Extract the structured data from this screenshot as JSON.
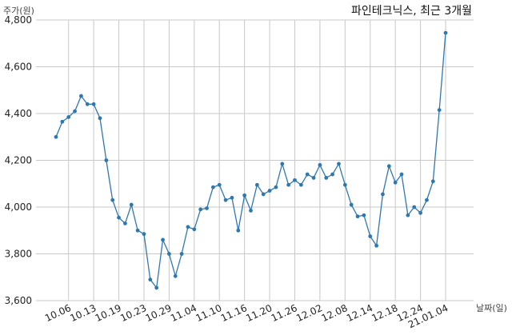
{
  "chart_data": {
    "type": "line",
    "title": "파인테크닉스, 최근 3개월",
    "xlabel": "날짜(일)",
    "ylabel": "주가(원)",
    "ylim": [
      3600,
      4800
    ],
    "y_ticks": [
      3600,
      3800,
      4000,
      4200,
      4400,
      4600,
      4800
    ],
    "y_tick_labels": [
      "3,600",
      "3,800",
      "4,000",
      "4,200",
      "4,400",
      "4,600",
      "4,800"
    ],
    "x_tick_labels": [
      "10.06",
      "10.13",
      "10.19",
      "10.23",
      "10.29",
      "11.04",
      "11.10",
      "11.16",
      "11.20",
      "11.26",
      "12.02",
      "12.08",
      "12.14",
      "12.18",
      "12.24",
      "21.01.04"
    ],
    "x_tick_index": [
      2,
      6,
      10,
      14,
      18,
      22,
      26,
      30,
      34,
      38,
      42,
      46,
      50,
      54,
      58,
      62
    ],
    "grid": true,
    "color": "#2e78b0",
    "values": [
      4300,
      4365,
      4385,
      4410,
      4475,
      4440,
      4440,
      4380,
      4200,
      4030,
      3955,
      3930,
      4010,
      3900,
      3885,
      3690,
      3655,
      3860,
      3800,
      3705,
      3800,
      3915,
      3905,
      3990,
      3995,
      4085,
      4095,
      4030,
      4040,
      3900,
      4050,
      3985,
      4095,
      4055,
      4070,
      4085,
      4185,
      4095,
      4115,
      4095,
      4140,
      4125,
      4180,
      4125,
      4140,
      4185,
      4095,
      4010,
      3960,
      3965,
      3875,
      3835,
      4055,
      4175,
      4105,
      4140,
      3965,
      4000,
      3975,
      4030,
      4110,
      4415,
      4745
    ]
  }
}
